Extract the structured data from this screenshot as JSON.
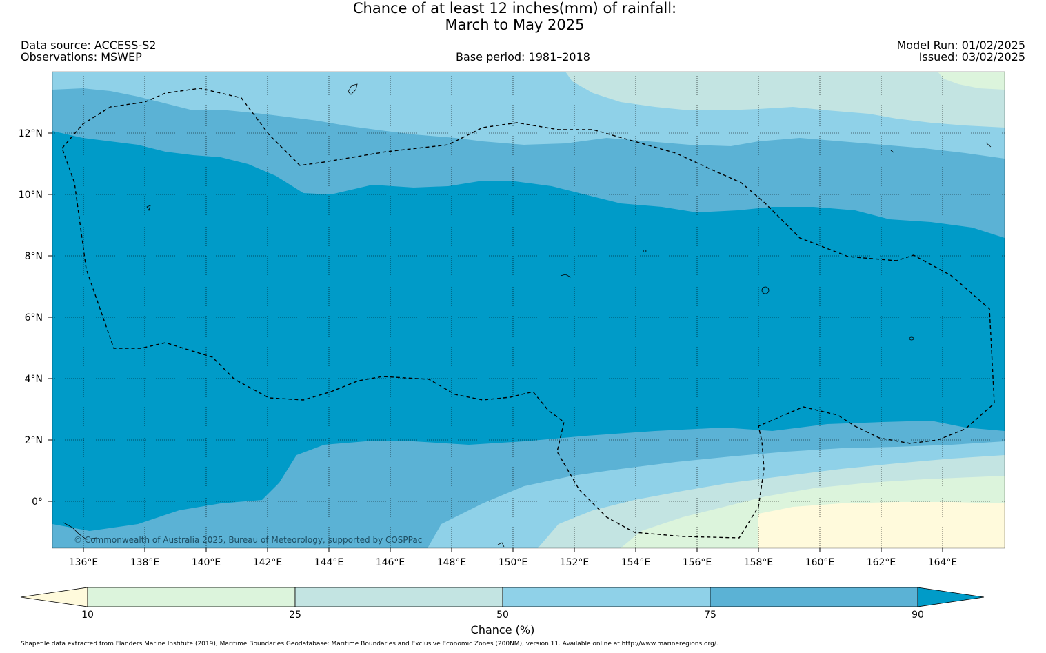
{
  "header": {
    "title_line1": "Chance of at least 12 inches(mm) of rainfall:",
    "title_line2": "March to May 2025",
    "data_source": "Data source: ACCESS-S2",
    "observations": "Observations: MSWEP",
    "base_period": "Base period: 1981–2018",
    "model_run": "Model Run: 01/02/2025",
    "issued": "Issued: 03/02/2025"
  },
  "map": {
    "copyright": "© Commonwealth of Australia 2025, Bureau of Meteorology, supported by COSPPac",
    "lat_labels": [
      "12°N",
      "10°N",
      "8°N",
      "6°N",
      "4°N",
      "2°N",
      "0°"
    ],
    "lon_labels": [
      "136°E",
      "138°E",
      "140°E",
      "142°E",
      "144°E",
      "146°E",
      "148°E",
      "150°E",
      "152°E",
      "154°E",
      "156°E",
      "158°E",
      "160°E",
      "162°E",
      "164°E"
    ],
    "colors": {
      "lt10": "#fffadc",
      "c10_25": "#dcf4dc",
      "c25_50": "#c3e4e2",
      "c50_75": "#8fd1e8",
      "c75_90": "#5bb2d5",
      "gt90": "#009bc8"
    }
  },
  "colorbar": {
    "ticks": [
      "10",
      "25",
      "50",
      "75",
      "90"
    ],
    "label": "Chance (%)"
  },
  "footer": {
    "attribution": "Shapefile data extracted from Flanders Marine Institute (2019), Maritime Boundaries Geodatabase: Maritime Boundaries and Exclusive Economic Zones (200NM), version 11. Available online at http://www.marineregions.org/."
  }
}
